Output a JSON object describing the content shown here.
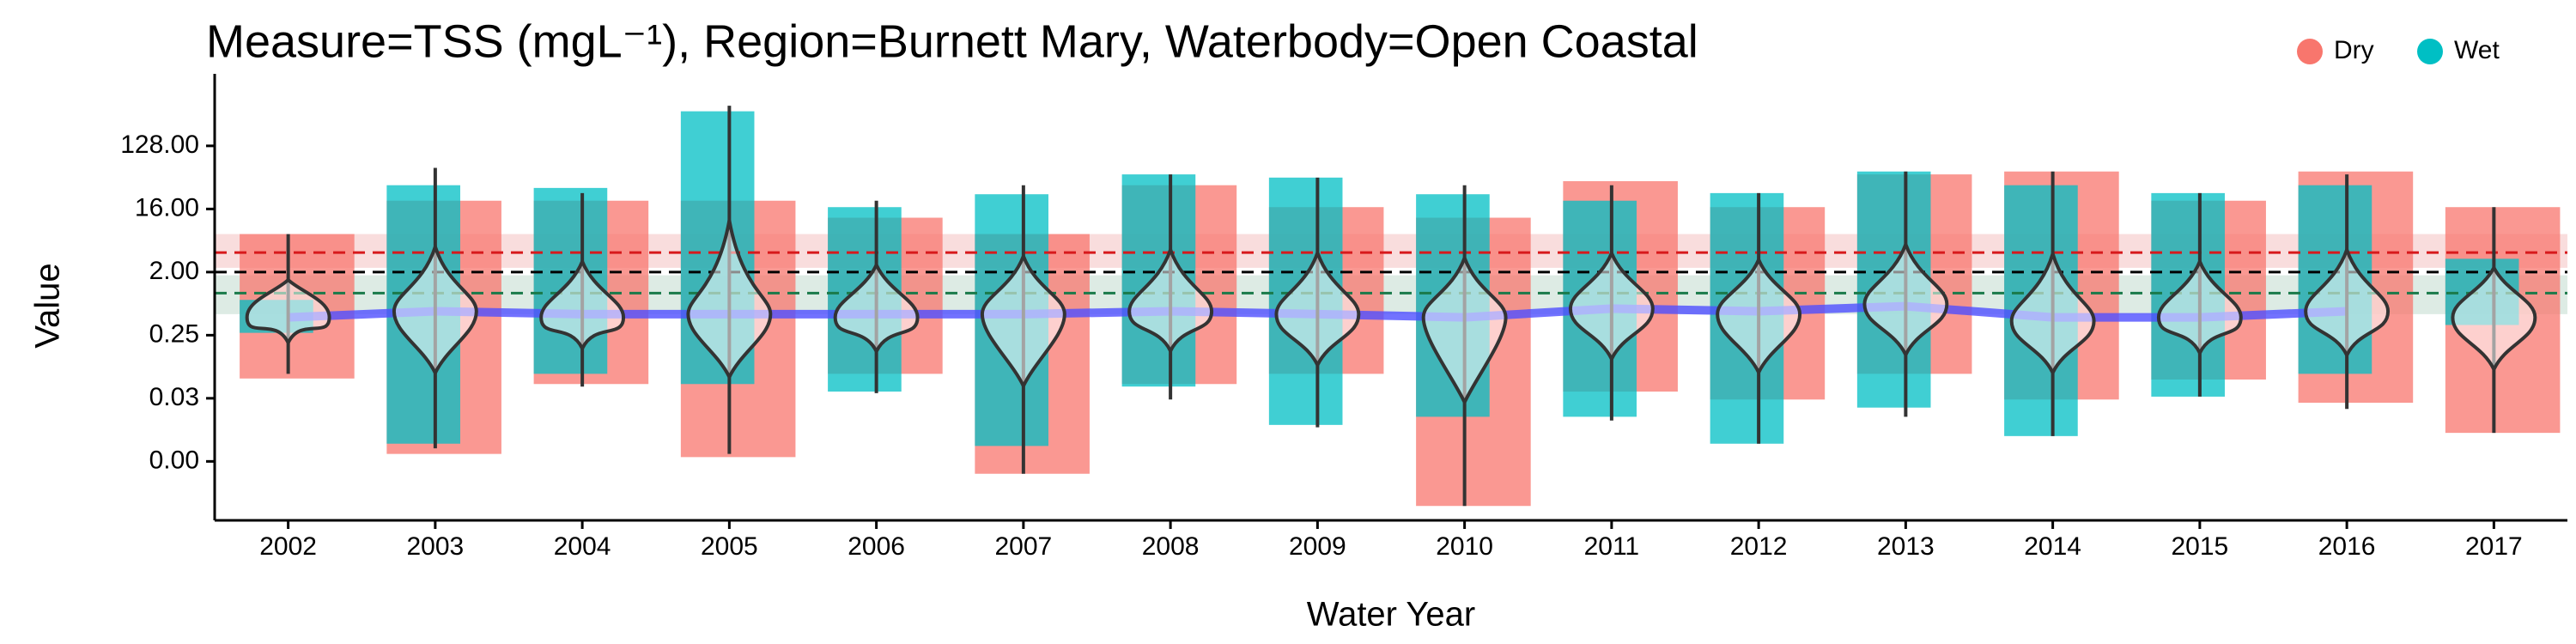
{
  "chart_data": {
    "type": "violin",
    "title": "Measure=TSS (mgL⁻¹), Region=Burnett Mary, Waterbody=Open Coastal",
    "xlabel": "Water Year",
    "ylabel": "Value",
    "log_scale": true,
    "legend_position": "top-right",
    "categories": [
      "2002",
      "2003",
      "2004",
      "2005",
      "2006",
      "2007",
      "2008",
      "2009",
      "2010",
      "2011",
      "2012",
      "2013",
      "2014",
      "2015",
      "2016",
      "2017"
    ],
    "ylim": [
      0.00056,
      780
    ],
    "yticks": [
      {
        "value": 0.00390625,
        "label": "0.00"
      },
      {
        "value": 0.03125,
        "label": "0.03"
      },
      0.25,
      {
        "value": 2,
        "label": "2.00"
      },
      {
        "value": 16,
        "label": "16.00"
      },
      {
        "value": 128,
        "label": "128.00"
      }
    ],
    "series": [
      {
        "name": "Dry",
        "color": "#F8766D",
        "low": [
          0.06,
          0.005,
          0.05,
          0.0045,
          0.07,
          0.0026,
          0.05,
          0.07,
          0.0009,
          0.039,
          0.03,
          0.07,
          0.03,
          0.058,
          0.027,
          0.01
        ],
        "high": [
          7,
          21,
          21,
          21,
          12,
          7,
          35,
          17,
          12,
          40,
          17,
          50,
          55,
          21,
          55,
          17
        ]
      },
      {
        "name": "Wet",
        "color": "#00BFC4",
        "low": [
          0.27,
          0.007,
          0.07,
          0.05,
          0.039,
          0.0065,
          0.046,
          0.013,
          0.017,
          0.017,
          0.007,
          0.023,
          0.009,
          0.033,
          0.07,
          0.35
        ],
        "high": [
          0.8,
          35,
          32,
          400,
          17,
          26,
          50,
          45,
          26,
          21,
          27,
          55,
          35,
          27,
          35,
          3.1
        ]
      }
    ],
    "violin": {
      "color": "#333333",
      "min": [
        0.07,
        0.006,
        0.046,
        0.005,
        0.037,
        0.0026,
        0.03,
        0.012,
        0.0009,
        0.015,
        0.007,
        0.017,
        0.009,
        0.033,
        0.022,
        0.01
      ],
      "max": [
        7,
        62,
        27,
        480,
        21,
        35,
        50,
        45,
        35,
        35,
        27,
        55,
        55,
        27,
        50,
        17
      ],
      "median": [
        0.45,
        0.55,
        0.45,
        0.5,
        0.45,
        0.5,
        0.55,
        0.5,
        0.45,
        0.6,
        0.5,
        0.7,
        0.4,
        0.45,
        0.55,
        0.45
      ]
    },
    "trend": {
      "color": "#4f4fff",
      "values": [
        0.45,
        0.55,
        0.5,
        0.5,
        0.5,
        0.5,
        0.55,
        0.5,
        0.45,
        0.6,
        0.55,
        0.65,
        0.45,
        0.45,
        0.55,
        null
      ]
    },
    "hlines": [
      {
        "value": 3.8,
        "color": "#d7191c",
        "band": [
          2.3,
          7
        ]
      },
      {
        "value": 2,
        "color": "#000000"
      },
      {
        "value": 1.0,
        "color": "#1a7a4a",
        "band": [
          0.5,
          1.8
        ]
      }
    ]
  }
}
